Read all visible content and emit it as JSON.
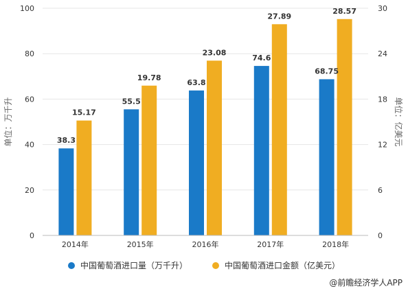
{
  "chart_data": {
    "type": "bar",
    "categories": [
      "2014年",
      "2015年",
      "2016年",
      "2017年",
      "2018年"
    ],
    "series": [
      {
        "name": "中国葡萄酒进口量（万千升）",
        "axis": "left",
        "color": "#1a7ac8",
        "values": [
          38.3,
          55.5,
          63.8,
          74.6,
          68.75
        ],
        "labels": [
          "38.3",
          "55.5",
          "63.8",
          "74.6",
          "68.75"
        ]
      },
      {
        "name": "中国葡萄酒进口金额（亿美元）",
        "axis": "right",
        "color": "#f0ad22",
        "values": [
          15.17,
          19.78,
          23.08,
          27.89,
          28.57
        ],
        "labels": [
          "15.17",
          "19.78",
          "23.08",
          "27.89",
          "28.57"
        ]
      }
    ],
    "ylabel": "单位：万千升",
    "y2label": "单位：亿美元",
    "ylim": [
      0,
      100
    ],
    "y2lim": [
      0,
      30
    ],
    "yticks": [
      "0",
      "20",
      "40",
      "60",
      "80",
      "100"
    ],
    "y2ticks": [
      "0",
      "6",
      "12",
      "18",
      "24",
      "30"
    ],
    "grid": true,
    "legend": "bottom"
  },
  "source": "@前瞻经济学人APP"
}
